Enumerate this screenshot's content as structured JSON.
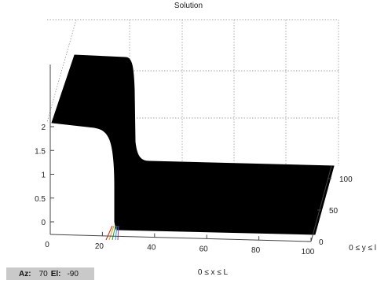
{
  "chart_data": {
    "type": "surface",
    "title": "Solution",
    "xlabel": "0 ≤ x ≤ L",
    "ylabel": "0 ≤ y ≤ l",
    "xlim": [
      0,
      100
    ],
    "ylim": [
      0,
      100
    ],
    "zlim": [
      -0.25,
      2.3
    ],
    "xticks": [
      "0",
      "20",
      "40",
      "60",
      "80",
      "100"
    ],
    "yticks": [
      "0",
      "50",
      "100"
    ],
    "zticks": [
      "0",
      "0.5",
      "1",
      "1.5",
      "2"
    ],
    "grid": true,
    "surface_color": "#000000",
    "profile": {
      "x": [
        0,
        5,
        10,
        15,
        20,
        24,
        26,
        28,
        30,
        35,
        40,
        60,
        80,
        100
      ],
      "z_at_y0": [
        1.45,
        1.47,
        1.6,
        1.75,
        1.9,
        1.9,
        1.2,
        0.3,
        0.2,
        0.2,
        0.2,
        0.2,
        0.2,
        0.2
      ],
      "z_at_y100": [
        2.05,
        2.15,
        2.3,
        2.3,
        2.3,
        2.28,
        1.8,
        0.4,
        0.2,
        0.2,
        0.2,
        0.2,
        0.2,
        0.2
      ]
    }
  },
  "viewer": {
    "az_label": "Az:",
    "az_value": "70",
    "el_label": "El:",
    "el_value": "-90"
  }
}
